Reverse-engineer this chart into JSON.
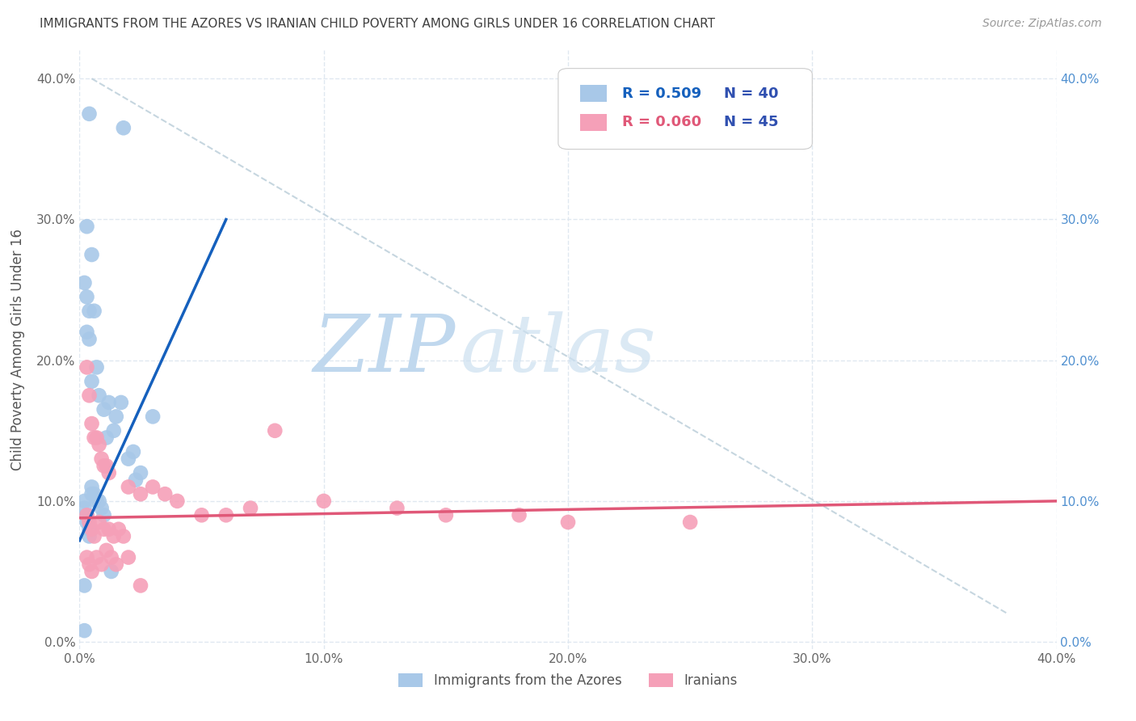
{
  "title": "IMMIGRANTS FROM THE AZORES VS IRANIAN CHILD POVERTY AMONG GIRLS UNDER 16 CORRELATION CHART",
  "source": "Source: ZipAtlas.com",
  "ylabel": "Child Poverty Among Girls Under 16",
  "xlim": [
    0.0,
    0.4
  ],
  "ylim": [
    -0.005,
    0.42
  ],
  "xticks": [
    0.0,
    0.1,
    0.2,
    0.3,
    0.4
  ],
  "yticks": [
    0.0,
    0.1,
    0.2,
    0.3,
    0.4
  ],
  "xticklabels": [
    "0.0%",
    "10.0%",
    "20.0%",
    "30.0%",
    "40.0%"
  ],
  "yticklabels": [
    "0.0%",
    "10.0%",
    "20.0%",
    "30.0%",
    "40.0%"
  ],
  "legend_r_azores": "0.509",
  "legend_n_azores": "40",
  "legend_r_iranians": "0.060",
  "legend_n_iranians": "45",
  "azores_color": "#a8c8e8",
  "iranians_color": "#f5a0b8",
  "azores_line_color": "#1560bd",
  "iranians_line_color": "#e05878",
  "dashed_line_color": "#b8ccd8",
  "watermark_zip_color": "#c8dff0",
  "watermark_atlas_color": "#d8e8f5",
  "background_color": "#ffffff",
  "grid_color": "#e0e8f0",
  "title_color": "#404040",
  "source_color": "#999999",
  "right_tick_color": "#5090d0",
  "legend_r_color_azores": "#1560bd",
  "legend_r_color_iranians": "#e05878",
  "legend_n_color": "#3050b0",
  "azores_x": [
    0.004,
    0.018,
    0.003,
    0.005,
    0.002,
    0.003,
    0.004,
    0.006,
    0.003,
    0.004,
    0.007,
    0.005,
    0.008,
    0.012,
    0.01,
    0.017,
    0.015,
    0.014,
    0.011,
    0.03,
    0.022,
    0.02,
    0.025,
    0.023,
    0.002,
    0.002,
    0.003,
    0.003,
    0.004,
    0.004,
    0.005,
    0.005,
    0.006,
    0.007,
    0.008,
    0.009,
    0.01,
    0.013,
    0.002,
    0.002
  ],
  "azores_y": [
    0.375,
    0.365,
    0.295,
    0.275,
    0.255,
    0.245,
    0.235,
    0.235,
    0.22,
    0.215,
    0.195,
    0.185,
    0.175,
    0.17,
    0.165,
    0.17,
    0.16,
    0.15,
    0.145,
    0.16,
    0.135,
    0.13,
    0.12,
    0.115,
    0.1,
    0.095,
    0.09,
    0.085,
    0.08,
    0.075,
    0.11,
    0.105,
    0.105,
    0.1,
    0.1,
    0.095,
    0.09,
    0.05,
    0.04,
    0.008
  ],
  "iranians_x": [
    0.003,
    0.004,
    0.005,
    0.006,
    0.007,
    0.008,
    0.009,
    0.01,
    0.011,
    0.012,
    0.003,
    0.004,
    0.005,
    0.006,
    0.008,
    0.01,
    0.012,
    0.014,
    0.016,
    0.018,
    0.02,
    0.025,
    0.03,
    0.035,
    0.04,
    0.05,
    0.06,
    0.07,
    0.08,
    0.1,
    0.13,
    0.15,
    0.18,
    0.2,
    0.25,
    0.003,
    0.004,
    0.005,
    0.007,
    0.009,
    0.011,
    0.013,
    0.015,
    0.02,
    0.025
  ],
  "iranians_y": [
    0.195,
    0.175,
    0.155,
    0.145,
    0.145,
    0.14,
    0.13,
    0.125,
    0.125,
    0.12,
    0.09,
    0.085,
    0.08,
    0.075,
    0.085,
    0.08,
    0.08,
    0.075,
    0.08,
    0.075,
    0.11,
    0.105,
    0.11,
    0.105,
    0.1,
    0.09,
    0.09,
    0.095,
    0.15,
    0.1,
    0.095,
    0.09,
    0.09,
    0.085,
    0.085,
    0.06,
    0.055,
    0.05,
    0.06,
    0.055,
    0.065,
    0.06,
    0.055,
    0.06,
    0.04
  ],
  "blue_line_x0": 0.0,
  "blue_line_y0": 0.072,
  "blue_line_x1": 0.06,
  "blue_line_y1": 0.3,
  "pink_line_x0": 0.0,
  "pink_line_y0": 0.088,
  "pink_line_x1": 0.4,
  "pink_line_y1": 0.1
}
